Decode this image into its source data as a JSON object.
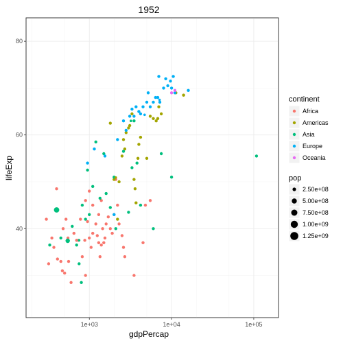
{
  "chart_data": {
    "type": "scatter",
    "title": "1952",
    "xlabel": "gdpPercap",
    "ylabel": "lifeExp",
    "x_scale": "log10",
    "xlim": [
      170,
      200000
    ],
    "ylim": [
      21,
      85
    ],
    "x_ticks": [
      {
        "value": 1000,
        "label": "1e+03"
      },
      {
        "value": 10000,
        "label": "1e+04"
      },
      {
        "value": 100000,
        "label": "1e+05"
      }
    ],
    "y_ticks": [
      {
        "value": 40,
        "label": "40"
      },
      {
        "value": 60,
        "label": "60"
      },
      {
        "value": 80,
        "label": "80"
      }
    ],
    "grid": true,
    "color_legend": {
      "title": "continent",
      "placement": "right",
      "entries": [
        {
          "name": "Africa",
          "color": "#F8766D"
        },
        {
          "name": "Americas",
          "color": "#A3A500"
        },
        {
          "name": "Asia",
          "color": "#00BF7D"
        },
        {
          "name": "Europe",
          "color": "#00B0F6"
        },
        {
          "name": "Oceania",
          "color": "#E76BF3"
        }
      ]
    },
    "size_legend": {
      "title": "pop",
      "placement": "right",
      "entries": [
        {
          "label": "2.50e+08",
          "value": 250000000
        },
        {
          "label": "5.00e+08",
          "value": 500000000
        },
        {
          "label": "7.50e+08",
          "value": 750000000
        },
        {
          "label": "1.00e+09",
          "value": 1000000000
        },
        {
          "label": "1.25e+09",
          "value": 1250000000
        }
      ]
    },
    "series": [
      {
        "name": "Africa",
        "points": [
          [
            300,
            42
          ],
          [
            320,
            32.5
          ],
          [
            350,
            38
          ],
          [
            370,
            36
          ],
          [
            400,
            48.5
          ],
          [
            410,
            33.5
          ],
          [
            450,
            33
          ],
          [
            470,
            31
          ],
          [
            500,
            30.5
          ],
          [
            480,
            40
          ],
          [
            520,
            42
          ],
          [
            550,
            38
          ],
          [
            560,
            33
          ],
          [
            600,
            28.5
          ],
          [
            650,
            39
          ],
          [
            700,
            37.5
          ],
          [
            740,
            37.5
          ],
          [
            780,
            42
          ],
          [
            820,
            34
          ],
          [
            880,
            37.5
          ],
          [
            900,
            30
          ],
          [
            950,
            41.5
          ],
          [
            1000,
            38
          ],
          [
            1050,
            36
          ],
          [
            1100,
            39
          ],
          [
            1200,
            41
          ],
          [
            1250,
            38.5
          ],
          [
            1300,
            37
          ],
          [
            1350,
            34
          ],
          [
            1400,
            36.5
          ],
          [
            1450,
            40
          ],
          [
            1500,
            37
          ],
          [
            1550,
            38
          ],
          [
            1600,
            41
          ],
          [
            1700,
            42.5
          ],
          [
            1800,
            40
          ],
          [
            1900,
            39
          ],
          [
            2000,
            43
          ],
          [
            2100,
            50.5
          ],
          [
            2300,
            41
          ],
          [
            2500,
            38.5
          ],
          [
            2600,
            36
          ],
          [
            2700,
            34
          ],
          [
            1100,
            45
          ],
          [
            1300,
            43
          ],
          [
            900,
            46
          ],
          [
            1000,
            48
          ],
          [
            1400,
            46
          ],
          [
            2200,
            45
          ],
          [
            3500,
            30
          ],
          [
            4500,
            37
          ],
          [
            4800,
            45
          ],
          [
            5500,
            46
          ]
        ]
      },
      {
        "name": "Americas",
        "points": [
          [
            1800,
            62.5
          ],
          [
            2000,
            50.5
          ],
          [
            2200,
            42
          ],
          [
            2300,
            50
          ],
          [
            2500,
            55.5
          ],
          [
            2600,
            59
          ],
          [
            2700,
            57
          ],
          [
            2800,
            60.5
          ],
          [
            3000,
            61.5
          ],
          [
            3100,
            62
          ],
          [
            3300,
            64.5
          ],
          [
            3500,
            50.5
          ],
          [
            3600,
            48.5
          ],
          [
            3700,
            45.5
          ],
          [
            3900,
            55
          ],
          [
            4000,
            58
          ],
          [
            4200,
            59.5
          ],
          [
            5000,
            55
          ],
          [
            5500,
            64
          ],
          [
            6000,
            63.5
          ],
          [
            6500,
            63
          ],
          [
            6800,
            63.5
          ],
          [
            7000,
            66
          ],
          [
            7500,
            64.5
          ],
          [
            11300,
            69
          ],
          [
            14000,
            68.5
          ]
        ]
      },
      {
        "name": "Asia",
        "points": [
          [
            330,
            36.5
          ],
          [
            400,
            44
          ],
          [
            450,
            38
          ],
          [
            540,
            37.5
          ],
          [
            620,
            40.5
          ],
          [
            700,
            36.5
          ],
          [
            750,
            32.5
          ],
          [
            800,
            28.5
          ],
          [
            820,
            45
          ],
          [
            900,
            42
          ],
          [
            950,
            52.5
          ],
          [
            1000,
            43
          ],
          [
            1100,
            49
          ],
          [
            1200,
            58.5
          ],
          [
            1350,
            46.5
          ],
          [
            1500,
            56
          ],
          [
            1600,
            47.5
          ],
          [
            1800,
            44.5
          ],
          [
            2000,
            51
          ],
          [
            2100,
            40
          ],
          [
            2600,
            56.5
          ],
          [
            3000,
            43.5
          ],
          [
            3300,
            53
          ],
          [
            3500,
            63
          ],
          [
            3800,
            54
          ],
          [
            4200,
            45
          ],
          [
            6000,
            40
          ],
          [
            7500,
            56
          ],
          [
            10000,
            51
          ],
          [
            108000,
            55.5
          ]
        ]
      },
      {
        "name": "Europe",
        "points": [
          [
            950,
            54
          ],
          [
            1150,
            57
          ],
          [
            1550,
            55.5
          ],
          [
            2000,
            43
          ],
          [
            2200,
            59
          ],
          [
            2600,
            63
          ],
          [
            2800,
            61
          ],
          [
            3100,
            64
          ],
          [
            3300,
            65.5
          ],
          [
            3500,
            64
          ],
          [
            3700,
            66
          ],
          [
            4000,
            65
          ],
          [
            4200,
            64.5
          ],
          [
            4500,
            66
          ],
          [
            5000,
            67
          ],
          [
            5200,
            69
          ],
          [
            5500,
            66
          ],
          [
            6000,
            67
          ],
          [
            6400,
            68
          ],
          [
            6800,
            68
          ],
          [
            7000,
            72.5
          ],
          [
            7200,
            67
          ],
          [
            8000,
            70
          ],
          [
            8500,
            72
          ],
          [
            9000,
            70.5
          ],
          [
            9700,
            71.5
          ],
          [
            10000,
            70
          ],
          [
            10500,
            72.5
          ],
          [
            11000,
            69
          ],
          [
            16000,
            69.5
          ]
        ]
      },
      {
        "name": "Oceania",
        "points": [
          [
            10000,
            69
          ],
          [
            11000,
            69.5
          ]
        ]
      }
    ],
    "sized_points": [
      {
        "continent": "Asia",
        "x": 400,
        "y": 44,
        "pop": 556000000
      },
      {
        "continent": "Asia",
        "x": 546,
        "y": 37.4,
        "pop": 372000000
      },
      {
        "continent": "Asia",
        "x": 750,
        "y": 37.5,
        "pop": 130000000
      },
      {
        "continent": "Asia",
        "x": 3200,
        "y": 63,
        "pop": 86000000
      },
      {
        "continent": "Americas",
        "x": 14000,
        "y": 68.5,
        "pop": 157000000
      },
      {
        "continent": "Americas",
        "x": 2100,
        "y": 50.9,
        "pop": 56000000
      },
      {
        "continent": "Europe",
        "x": 7150,
        "y": 67.5,
        "pop": 50000000
      },
      {
        "continent": "Europe",
        "x": 4700,
        "y": 64.3,
        "pop": 47000000
      }
    ]
  }
}
